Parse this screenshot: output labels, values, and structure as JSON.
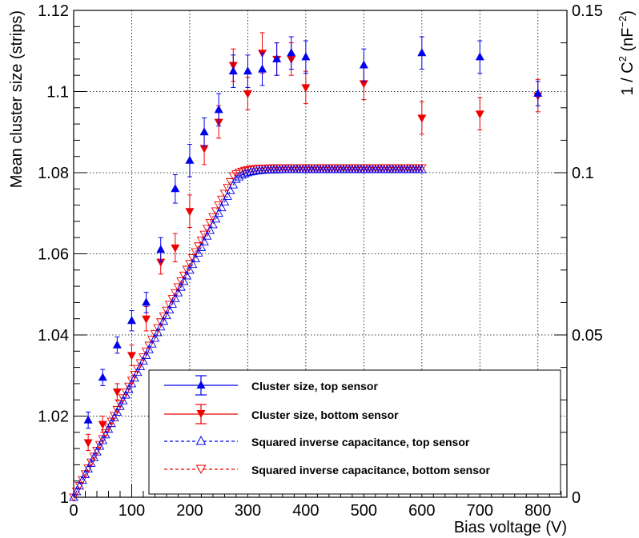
{
  "chart_data": {
    "type": "scatter",
    "xlabel": "Bias voltage (V)",
    "ylabel": "Mean cluster size (strips)",
    "y2label_main": "1 / C",
    "y2label_sup": "2",
    "y2label_unit": " (nF",
    "y2label_unit_sup": "−2",
    "y2label_end": ")",
    "xlim": [
      0,
      850
    ],
    "ylim": [
      1.0,
      1.12
    ],
    "y2lim": [
      0,
      0.15
    ],
    "grid": true,
    "legend_position": "bottom-right",
    "x_ticks": [
      "0",
      "100",
      "200",
      "300",
      "400",
      "500",
      "600",
      "700",
      "800"
    ],
    "x_tick_values": [
      0,
      100,
      200,
      300,
      400,
      500,
      600,
      700,
      800
    ],
    "y_ticks": [
      "1",
      "1.02",
      "1.04",
      "1.06",
      "1.08",
      "1.1",
      "1.12"
    ],
    "y_tick_values": [
      1.0,
      1.02,
      1.04,
      1.06,
      1.08,
      1.1,
      1.12
    ],
    "y2_ticks": [
      "0",
      "0.05",
      "0.1",
      "0.15"
    ],
    "y2_tick_values": [
      0,
      0.05,
      0.1,
      0.15
    ],
    "colors": {
      "top": "#0000ee",
      "bottom": "#ee0000"
    },
    "series": [
      {
        "name": "Cluster size, top sensor",
        "marker": "triangle-up-filled",
        "axis": "left",
        "x": [
          25,
          50,
          75,
          100,
          125,
          150,
          175,
          200,
          225,
          250,
          275,
          300,
          325,
          350,
          375,
          400,
          500,
          600,
          700,
          800
        ],
        "y": [
          1.019,
          1.0295,
          1.0375,
          1.0435,
          1.048,
          1.061,
          1.076,
          1.083,
          1.09,
          1.0955,
          1.105,
          1.105,
          1.1055,
          1.108,
          1.1095,
          1.1085,
          1.1065,
          1.1095,
          1.1085,
          1.0995
        ],
        "err": [
          0.002,
          0.002,
          0.002,
          0.0025,
          0.0025,
          0.003,
          0.0035,
          0.004,
          0.0035,
          0.004,
          0.004,
          0.004,
          0.004,
          0.004,
          0.004,
          0.004,
          0.004,
          0.004,
          0.004,
          0.003
        ]
      },
      {
        "name": "Cluster size, bottom sensor",
        "marker": "triangle-down-filled",
        "axis": "left",
        "x": [
          25,
          50,
          75,
          100,
          125,
          150,
          175,
          200,
          225,
          250,
          275,
          300,
          325,
          350,
          375,
          400,
          500,
          600,
          700,
          800
        ],
        "y": [
          1.0135,
          1.018,
          1.026,
          1.035,
          1.044,
          1.058,
          1.0615,
          1.0705,
          1.086,
          1.0925,
          1.1065,
          1.0995,
          1.1095,
          1.108,
          1.108,
          1.101,
          1.102,
          1.0935,
          1.0945,
          1.099
        ],
        "err": [
          0.002,
          0.002,
          0.002,
          0.0025,
          0.003,
          0.003,
          0.0035,
          0.004,
          0.004,
          0.004,
          0.004,
          0.004,
          0.005,
          0.004,
          0.004,
          0.004,
          0.004,
          0.004,
          0.004,
          0.004
        ]
      },
      {
        "name": "Squared inverse capacitance, top sensor",
        "marker": "triangle-up-open",
        "axis": "right",
        "curve": {
          "x_start": 0,
          "x_end": 600,
          "step": 5,
          "knee": 280,
          "y_knee": 0.098,
          "y_plateau": 0.101,
          "tau": 18
        }
      },
      {
        "name": "Squared inverse capacitance, bottom sensor",
        "marker": "triangle-down-open",
        "axis": "right",
        "curve": {
          "x_start": 0,
          "x_end": 600,
          "step": 5,
          "knee": 275,
          "y_knee": 0.099,
          "y_plateau": 0.1015,
          "tau": 18
        }
      }
    ]
  }
}
